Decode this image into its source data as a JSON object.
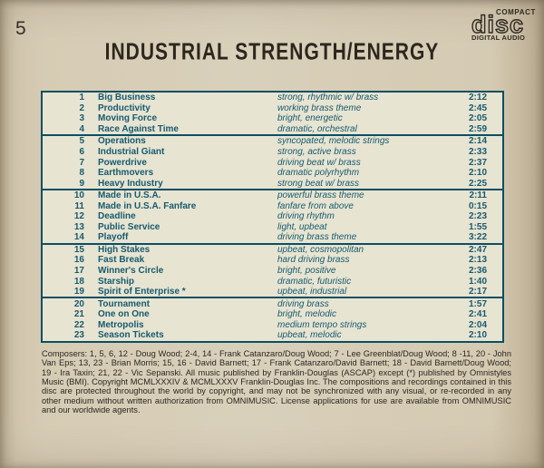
{
  "page_number": "5",
  "title": "INDUSTRIAL STRENGTH/ENERGY",
  "cd_logo": {
    "top": "COMPACT",
    "main": "disc",
    "bottom": "DIGITAL AUDIO"
  },
  "colors": {
    "card_bg": "#d6cbb3",
    "table_bg": "#e7e4d2",
    "teal": "#175a6e",
    "border": "#0c4f62",
    "ink": "#2b2721",
    "title_ink": "#2d261d"
  },
  "tracks": {
    "groups": [
      [
        {
          "num": "1",
          "title": "Big Business",
          "desc": "strong, rhythmic w/ brass",
          "time": "2:12"
        },
        {
          "num": "2",
          "title": "Productivity",
          "desc": "working brass theme",
          "time": "2:45"
        },
        {
          "num": "3",
          "title": "Moving Force",
          "desc": "bright, energetic",
          "time": "2:05"
        },
        {
          "num": "4",
          "title": "Race Against Time",
          "desc": "dramatic, orchestral",
          "time": "2:59"
        }
      ],
      [
        {
          "num": "5",
          "title": "Operations",
          "desc": "syncopated, melodic strings",
          "time": "2:14"
        },
        {
          "num": "6",
          "title": "Industrial Giant",
          "desc": "strong, active brass",
          "time": "2:33"
        },
        {
          "num": "7",
          "title": "Powerdrive",
          "desc": "driving beat w/ brass",
          "time": "2:37"
        },
        {
          "num": "8",
          "title": "Earthmovers",
          "desc": "dramatic polyrhythm",
          "time": "2:10"
        },
        {
          "num": "9",
          "title": "Heavy Industry",
          "desc": "strong beat w/ brass",
          "time": "2:25"
        }
      ],
      [
        {
          "num": "10",
          "title": "Made in U.S.A.",
          "desc": "powerful brass theme",
          "time": "2:11"
        },
        {
          "num": "11",
          "title": "Made in U.S.A. Fanfare",
          "desc": "fanfare from above",
          "time": "0:15"
        },
        {
          "num": "12",
          "title": "Deadline",
          "desc": "driving rhythm",
          "time": "2:23"
        },
        {
          "num": "13",
          "title": "Public Service",
          "desc": "light, upbeat",
          "time": "1:55"
        },
        {
          "num": "14",
          "title": "Playoff",
          "desc": "driving brass theme",
          "time": "3:22"
        }
      ],
      [
        {
          "num": "15",
          "title": "High Stakes",
          "desc": "upbeat, cosmopolitan",
          "time": "2:47"
        },
        {
          "num": "16",
          "title": "Fast Break",
          "desc": "hard driving brass",
          "time": "2:13"
        },
        {
          "num": "17",
          "title": "Winner's Circle",
          "desc": "bright, positive",
          "time": "2:36"
        },
        {
          "num": "18",
          "title": "Starship",
          "desc": "dramatic, futuristic",
          "time": "1:40"
        },
        {
          "num": "19",
          "title": "Spirit of Enterprise *",
          "desc": "upbeat, industrial",
          "time": "2:17"
        }
      ],
      [
        {
          "num": "20",
          "title": "Tournament",
          "desc": "driving brass",
          "time": "1:57"
        },
        {
          "num": "21",
          "title": "One on One",
          "desc": "bright, melodic",
          "time": "2:41"
        },
        {
          "num": "22",
          "title": "Metropolis",
          "desc": "medium tempo strings",
          "time": "2:04"
        },
        {
          "num": "23",
          "title": "Season Tickets",
          "desc": "upbeat, melodic",
          "time": "2:10"
        }
      ]
    ]
  },
  "footer": {
    "text": "Composers:  1, 5, 6, 12 - Doug Wood; 2-4, 14 - Frank Catanzaro/Doug Wood; 7 - Lee Greenblat/Doug Wood; 8 -11, 20 - John Van Eps; 13, 23 - Brian Morris; 15, 16 - David Barnett; 17 - Frank Catanzaro/David Barnett; 18 - David Barnett/Doug Wood; 19 - Ira Taxin; 21, 22 - Vic Sepanski.  All music published by Franklin-Douglas (ASCAP) except (*) published by Omnistyles Music (BMI). Copyright MCMLXXXIV & MCMLXXXV Franklin-Douglas Inc.  The compositions and recordings contained in this disc are protected throughout the world by copyright, and may not be synchronized with any visual, or re-recorded in any other medium without written authorization from OMNIMUSIC. License applications for use are available from OMNIMUSIC and our worldwide agents."
  }
}
